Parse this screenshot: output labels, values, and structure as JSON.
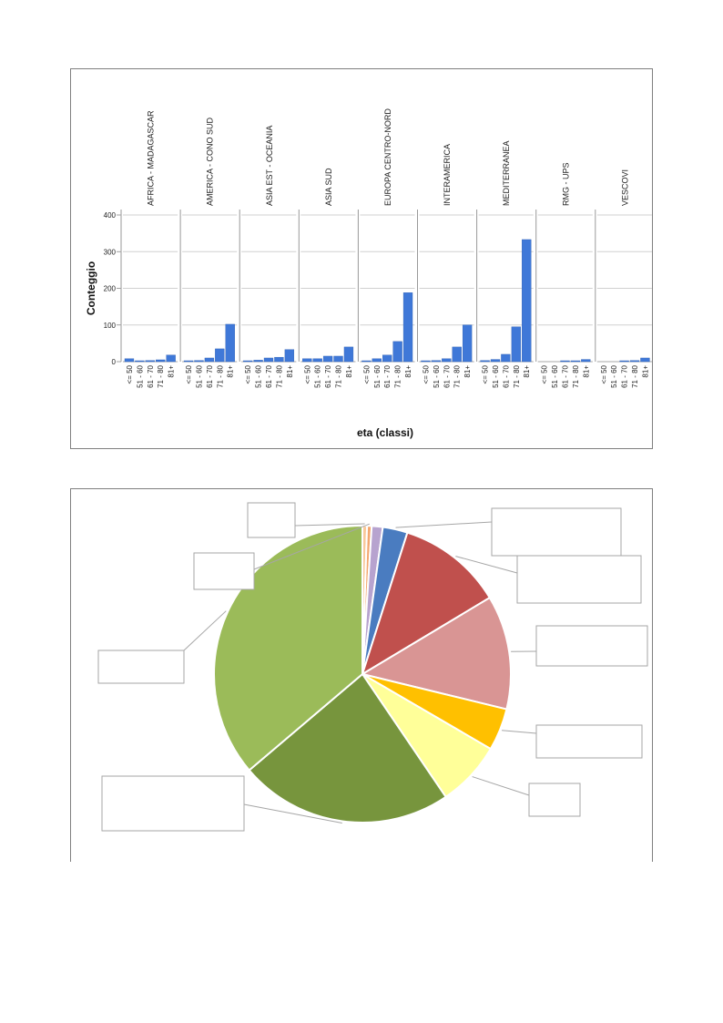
{
  "chart_data": [
    {
      "type": "bar",
      "ylabel": "Conteggio",
      "xlabel": "eta (classi)",
      "ylim": [
        0,
        400
      ],
      "yticks": [
        "0",
        "100",
        "200",
        "300",
        "400"
      ],
      "categories": [
        "<= 50",
        "51 - 60",
        "61 - 70",
        "71 - 80",
        "81+"
      ],
      "grid": true,
      "bar_color": "#3f78d8",
      "panels": [
        {
          "name": "AFRICA - MADAGASCAR",
          "values": [
            8,
            2,
            3,
            5,
            18
          ]
        },
        {
          "name": "AMERICA - CONO SUD",
          "values": [
            2,
            3,
            10,
            35,
            102
          ]
        },
        {
          "name": "ASIA EST - OCEANIA",
          "values": [
            2,
            4,
            10,
            12,
            33
          ]
        },
        {
          "name": "ASIA SUD",
          "values": [
            8,
            8,
            15,
            15,
            40
          ]
        },
        {
          "name": "EUROPA CENTRO-NORD",
          "values": [
            2,
            8,
            18,
            55,
            188
          ]
        },
        {
          "name": "INTERAMERICA",
          "values": [
            2,
            3,
            8,
            40,
            100
          ]
        },
        {
          "name": "MEDITERRANEA",
          "values": [
            3,
            6,
            20,
            95,
            333
          ]
        },
        {
          "name": "RMG - UPS",
          "values": [
            0,
            0,
            1,
            2,
            6
          ]
        },
        {
          "name": "VESCOVI",
          "values": [
            0,
            0,
            1,
            3,
            10
          ]
        }
      ]
    },
    {
      "type": "pie",
      "slices": [
        {
          "value": 0.5,
          "color": "#f9c89b"
        },
        {
          "value": 0.5,
          "color": "#f4a770"
        },
        {
          "value": 1.2,
          "color": "#b7a3cf"
        },
        {
          "value": 2.7,
          "color": "#4a7cc0"
        },
        {
          "value": 11.5,
          "color": "#c0504d"
        },
        {
          "value": 12.4,
          "color": "#d99594"
        },
        {
          "value": 4.6,
          "color": "#ffc000"
        },
        {
          "value": 7.1,
          "color": "#ffff99"
        },
        {
          "value": 23.3,
          "color": "#77953d"
        },
        {
          "value": 36.2,
          "color": "#9bbb59"
        }
      ]
    }
  ]
}
